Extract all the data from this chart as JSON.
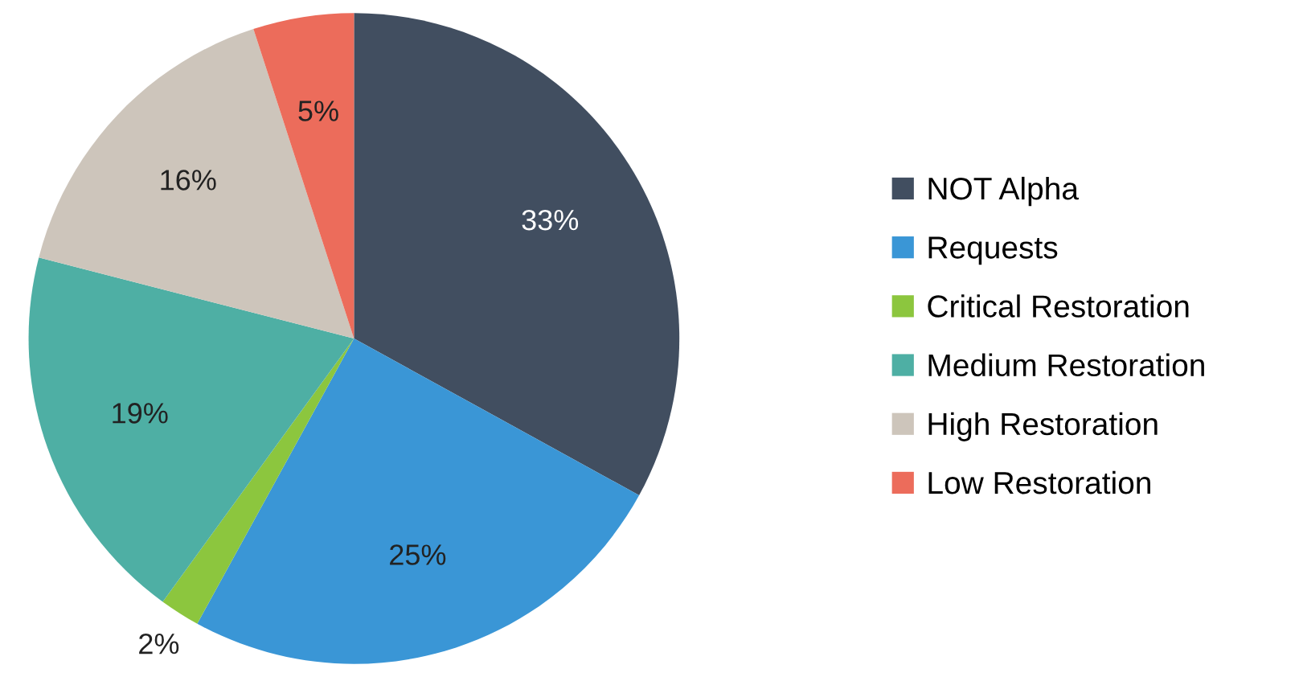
{
  "chart_data": {
    "type": "pie",
    "categories": [
      "NOT Alpha",
      "Requests",
      "Critical Restoration",
      "Medium Restoration",
      "High Restoration",
      "Low Restoration"
    ],
    "values": [
      33,
      25,
      2,
      19,
      16,
      5
    ],
    "colors": [
      "#414e60",
      "#3a96d6",
      "#8cc63e",
      "#4eafa4",
      "#cdc5bb",
      "#ec6c5b"
    ],
    "value_labels": [
      "33%",
      "25%",
      "2%",
      "19%",
      "16%",
      "5%"
    ],
    "legend": "right"
  }
}
